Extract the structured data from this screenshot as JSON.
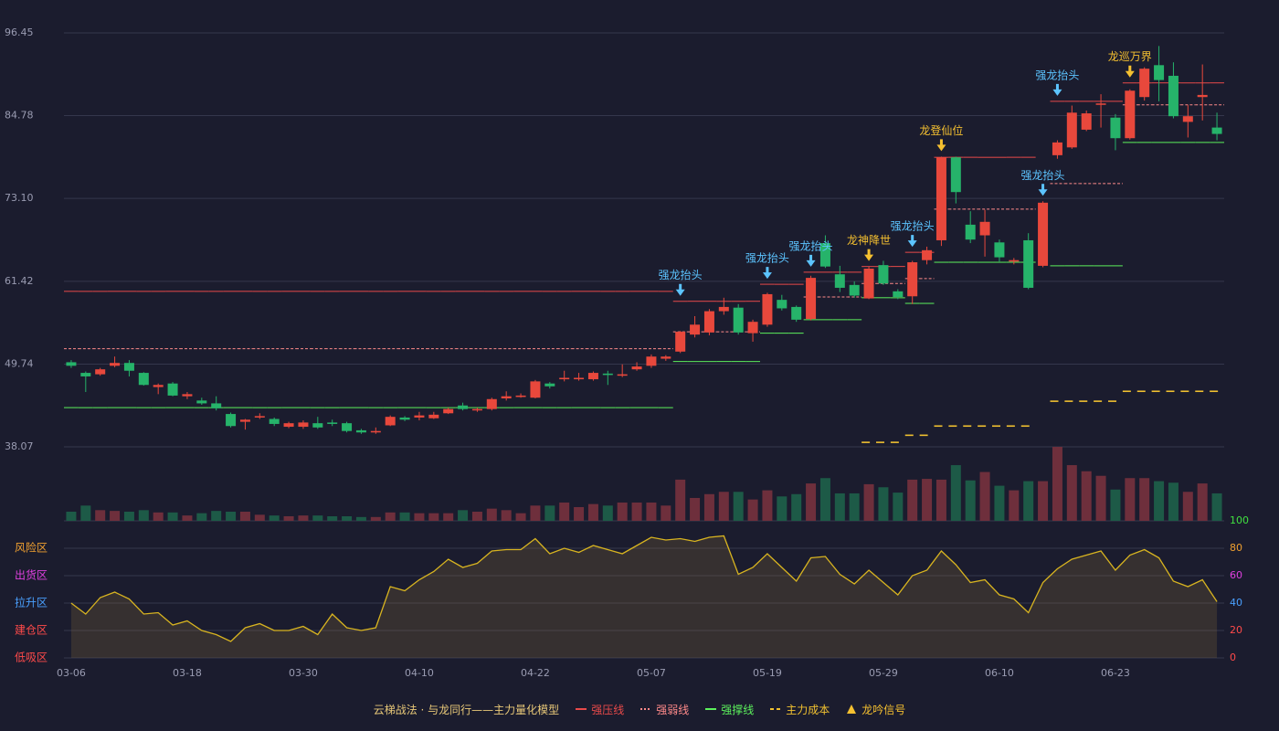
{
  "chart_data": {
    "type": "candlestick",
    "legend_title": "云梯战法 · 与龙同行——主力量化模型",
    "categories": [
      "03-06",
      null,
      null,
      null,
      null,
      null,
      null,
      null,
      "03-18",
      null,
      null,
      null,
      null,
      null,
      null,
      null,
      "03-30",
      null,
      null,
      null,
      null,
      null,
      null,
      null,
      "04-10",
      null,
      null,
      null,
      null,
      null,
      null,
      null,
      "04-22",
      null,
      null,
      null,
      null,
      null,
      null,
      null,
      "05-07",
      null,
      null,
      null,
      null,
      null,
      null,
      null,
      "05-19",
      null,
      null,
      null,
      null,
      null,
      null,
      null,
      "05-29",
      null,
      null,
      null,
      null,
      null,
      null,
      null,
      "06-10",
      null,
      null,
      null,
      null,
      null,
      null,
      null,
      "06-23",
      null,
      null,
      null,
      null,
      null,
      null,
      null
    ],
    "ylim": [
      38.07,
      96.45
    ],
    "yticks": [
      38.07,
      49.74,
      61.42,
      {
        "value": 73.1,
        "label": "73.10"
      },
      84.78,
      96.45
    ],
    "grid": true,
    "candles": {
      "up_color": "#e8483c",
      "down_color": "#26b36a",
      "open": [
        50.0,
        48.5,
        48.3,
        49.5,
        49.9,
        48.5,
        46.5,
        47.0,
        45.2,
        44.6,
        44.2,
        42.7,
        41.6,
        42.2,
        42.0,
        40.9,
        40.9,
        41.4,
        41.5,
        41.4,
        40.4,
        40.1,
        41.1,
        42.2,
        42.2,
        42.1,
        42.8,
        43.9,
        43.2,
        43.4,
        44.9,
        45.1,
        45.0,
        47.0,
        47.6,
        47.6,
        47.6,
        48.4,
        48.1,
        49.0,
        49.5,
        50.5,
        51.5,
        53.9,
        54.2,
        57.2,
        57.7,
        54.1,
        55.3,
        58.8,
        57.8,
        56.1,
        66.8,
        62.4,
        60.9,
        59.0,
        63.7,
        60.0,
        59.3,
        64.4,
        67.2,
        78.9,
        69.4,
        67.9,
        66.9,
        64.2,
        67.2,
        63.6,
        79.2,
        80.3,
        82.8,
        86.3,
        84.5,
        81.6,
        87.4,
        91.9,
        90.4,
        83.9,
        87.4,
        83.1
      ],
      "high": [
        50.3,
        48.7,
        49.2,
        50.8,
        50.3,
        48.6,
        47.0,
        47.2,
        45.8,
        45.0,
        45.2,
        42.9,
        42.0,
        42.8,
        42.2,
        41.6,
        41.8,
        42.3,
        41.9,
        41.6,
        40.6,
        40.8,
        42.5,
        42.4,
        43.0,
        43.0,
        43.6,
        44.3,
        43.6,
        45.0,
        45.9,
        45.6,
        47.5,
        47.2,
        48.8,
        48.5,
        48.7,
        48.8,
        49.7,
        50.0,
        51.1,
        51.0,
        54.4,
        56.5,
        57.5,
        59.1,
        58.2,
        56.0,
        59.8,
        59.5,
        58.0,
        62.2,
        67.9,
        63.6,
        61.4,
        63.5,
        64.3,
        60.3,
        64.3,
        66.3,
        79.0,
        79.0,
        71.3,
        71.5,
        67.3,
        64.7,
        68.2,
        72.7,
        81.3,
        86.2,
        85.5,
        87.8,
        85.0,
        88.5,
        91.6,
        94.6,
        92.3,
        86.3,
        92.0,
        85.2
      ],
      "low": [
        49.2,
        45.8,
        48.1,
        49.3,
        48.0,
        46.7,
        45.5,
        45.2,
        44.8,
        44.0,
        43.2,
        40.8,
        40.5,
        42.0,
        41.0,
        40.7,
        40.6,
        40.6,
        41.0,
        40.1,
        39.9,
        39.9,
        41.0,
        41.7,
        41.8,
        42.0,
        42.7,
        43.2,
        43.0,
        43.2,
        44.6,
        45.0,
        44.9,
        46.3,
        47.3,
        47.4,
        47.4,
        46.8,
        47.9,
        48.8,
        49.2,
        50.2,
        51.3,
        53.5,
        53.8,
        56.7,
        53.9,
        52.9,
        55.0,
        57.3,
        55.7,
        55.9,
        63.3,
        59.9,
        59.1,
        58.9,
        60.9,
        58.9,
        58.2,
        63.8,
        66.4,
        72.4,
        66.8,
        64.9,
        64.2,
        63.8,
        60.3,
        63.4,
        78.7,
        80.1,
        82.6,
        83.1,
        79.9,
        81.4,
        86.9,
        86.8,
        84.4,
        81.7,
        84.1,
        81.3
      ],
      "close": [
        49.5,
        48.0,
        49.0,
        49.9,
        48.8,
        46.8,
        46.8,
        45.3,
        45.5,
        44.2,
        43.5,
        41.0,
        41.9,
        42.4,
        41.3,
        41.4,
        41.5,
        40.8,
        41.3,
        40.3,
        40.1,
        40.3,
        42.3,
        41.9,
        42.5,
        42.6,
        43.4,
        43.4,
        43.4,
        44.8,
        45.2,
        45.3,
        47.3,
        46.6,
        47.8,
        47.8,
        48.5,
        48.2,
        48.3,
        49.4,
        50.8,
        50.8,
        54.3,
        55.3,
        57.2,
        57.8,
        54.2,
        55.7,
        59.6,
        57.6,
        56.0,
        61.9,
        63.5,
        60.5,
        59.4,
        63.2,
        61.1,
        59.2,
        64.1,
        65.8,
        78.9,
        74.0,
        67.3,
        69.8,
        64.8,
        64.4,
        60.5,
        72.5,
        81.0,
        85.2,
        85.1,
        86.5,
        81.6,
        88.3,
        91.4,
        89.8,
        84.7,
        84.7,
        87.7,
        82.2
      ]
    },
    "volume": {
      "up_color": "#6e2f3c",
      "down_color": "#1d5a47",
      "values": [
        12,
        20,
        14,
        13,
        12,
        14,
        11,
        11,
        7,
        10,
        13,
        12,
        12,
        8,
        7,
        6,
        7,
        7,
        6,
        6,
        5,
        5,
        11,
        11,
        10,
        10,
        10,
        14,
        12,
        16,
        14,
        10,
        20,
        20,
        24,
        18,
        22,
        20,
        24,
        24,
        24,
        20,
        54,
        30,
        35,
        38,
        38,
        28,
        40,
        32,
        35,
        49,
        56,
        36,
        36,
        48,
        44,
        37,
        54,
        55,
        54,
        73,
        53,
        64,
        46,
        40,
        52,
        52,
        97,
        73,
        65,
        59,
        41,
        56,
        56,
        52,
        50,
        38,
        49,
        36
      ]
    },
    "lines": [
      {
        "name": "强压线",
        "color": "#e84a4a",
        "style": "solid",
        "values": [
          60.0,
          60.0,
          60.0,
          60.0,
          60.0,
          60.0,
          60.0,
          60.0,
          60.0,
          60.0,
          60.0,
          60.0,
          60.0,
          60.0,
          60.0,
          60.0,
          60.0,
          60.0,
          60.0,
          60.0,
          60.0,
          60.0,
          60.0,
          60.0,
          60.0,
          60.0,
          60.0,
          60.0,
          60.0,
          60.0,
          60.0,
          60.0,
          60.0,
          60.0,
          60.0,
          60.0,
          60.0,
          60.0,
          60.0,
          60.0,
          60.0,
          60.0,
          58.6,
          58.6,
          58.6,
          58.6,
          58.6,
          58.6,
          61.0,
          61.0,
          61.0,
          62.7,
          62.7,
          62.7,
          62.7,
          63.5,
          63.5,
          63.5,
          65.5,
          65.5,
          78.9,
          78.9,
          78.9,
          78.9,
          78.9,
          78.9,
          78.9,
          null,
          86.8,
          86.8,
          86.8,
          86.8,
          86.8,
          89.4,
          89.4,
          89.4,
          89.4,
          89.4,
          89.4,
          89.4
        ]
      },
      {
        "name": "强弱线",
        "color": "#ff8a8a",
        "style": "dotted",
        "values": [
          51.9,
          51.9,
          51.9,
          51.9,
          51.9,
          51.9,
          51.9,
          51.9,
          51.9,
          51.9,
          51.9,
          51.9,
          51.9,
          51.9,
          51.9,
          51.9,
          51.9,
          51.9,
          51.9,
          51.9,
          51.9,
          51.9,
          51.9,
          51.9,
          51.9,
          51.9,
          51.9,
          51.9,
          51.9,
          51.9,
          51.9,
          51.9,
          51.9,
          51.9,
          51.9,
          51.9,
          51.9,
          51.9,
          51.9,
          51.9,
          51.9,
          51.9,
          54.3,
          54.3,
          54.3,
          54.3,
          54.3,
          54.3,
          null,
          null,
          null,
          59.2,
          59.2,
          59.2,
          59.2,
          61.1,
          61.1,
          61.1,
          61.8,
          61.8,
          71.6,
          71.6,
          71.6,
          71.6,
          71.6,
          71.6,
          71.6,
          null,
          75.2,
          75.2,
          75.2,
          75.2,
          75.2,
          86.3,
          86.3,
          86.3,
          86.3,
          86.3,
          86.3,
          86.3
        ]
      },
      {
        "name": "强撑线",
        "color": "#5cf05c",
        "style": "solid",
        "values": [
          43.6,
          43.6,
          43.6,
          43.6,
          43.6,
          43.6,
          43.6,
          43.6,
          43.6,
          43.6,
          43.6,
          43.6,
          43.6,
          43.6,
          43.6,
          43.6,
          43.6,
          43.6,
          43.6,
          43.6,
          43.6,
          43.6,
          43.6,
          43.6,
          43.6,
          43.6,
          43.6,
          43.6,
          43.6,
          43.6,
          43.6,
          43.6,
          43.6,
          43.6,
          43.6,
          43.6,
          43.6,
          43.6,
          43.6,
          43.6,
          43.6,
          43.6,
          50.1,
          50.1,
          50.1,
          50.1,
          50.1,
          50.1,
          54.1,
          54.1,
          54.1,
          56.0,
          56.0,
          56.0,
          56.0,
          59.1,
          59.1,
          59.1,
          58.3,
          58.3,
          64.1,
          64.1,
          64.1,
          64.1,
          64.1,
          64.1,
          64.1,
          null,
          63.6,
          63.6,
          63.6,
          63.6,
          63.6,
          81.0,
          81.0,
          81.0,
          81.0,
          81.0,
          81.0,
          81.0
        ]
      },
      {
        "name": "主力成本",
        "color": "#f0c030",
        "style": "dashed",
        "values": [
          null,
          null,
          null,
          null,
          null,
          null,
          null,
          null,
          null,
          null,
          null,
          null,
          null,
          null,
          null,
          null,
          null,
          null,
          null,
          null,
          null,
          null,
          null,
          null,
          null,
          null,
          null,
          null,
          null,
          null,
          null,
          null,
          null,
          null,
          null,
          null,
          null,
          null,
          null,
          null,
          null,
          null,
          null,
          null,
          null,
          null,
          null,
          null,
          null,
          null,
          null,
          null,
          null,
          null,
          null,
          38.7,
          38.7,
          38.7,
          39.7,
          39.7,
          41.0,
          41.0,
          41.0,
          41.0,
          41.0,
          41.0,
          41.0,
          null,
          44.5,
          44.5,
          44.5,
          44.5,
          44.5,
          45.9,
          45.9,
          45.9,
          45.9,
          45.9,
          45.9,
          45.9
        ]
      }
    ],
    "signal_legend": {
      "name": "龙吟信号",
      "color": "#f5c030"
    },
    "signals": [
      {
        "index": 42,
        "label": "强龙抬头",
        "color": "#5cc4ff"
      },
      {
        "index": 48,
        "label": "强龙抬头",
        "color": "#5cc4ff"
      },
      {
        "index": 51,
        "label": "强龙抬头",
        "color": "#5cc4ff"
      },
      {
        "index": 55,
        "label": "龙神降世",
        "color": "#f5c030"
      },
      {
        "index": 58,
        "label": "强龙抬头",
        "color": "#5cc4ff"
      },
      {
        "index": 60,
        "label": "龙登仙位",
        "color": "#f5c030"
      },
      {
        "index": 67,
        "label": "强龙抬头",
        "color": "#5cc4ff"
      },
      {
        "index": 68,
        "label": "强龙抬头",
        "color": "#5cc4ff"
      },
      {
        "index": 73,
        "label": "龙巡万界",
        "color": "#f5c030"
      }
    ],
    "oscillator": {
      "color": "#d8b420",
      "values": [
        40,
        32,
        44,
        48,
        43,
        32,
        33,
        24,
        27,
        20,
        17,
        12,
        22,
        25,
        20,
        20,
        23,
        17,
        32,
        22,
        20,
        22,
        52,
        49,
        57,
        63,
        72,
        66,
        69,
        78,
        79,
        79,
        87,
        76,
        80,
        77,
        82,
        79,
        76,
        82,
        88,
        86,
        87,
        85,
        88,
        89,
        61,
        66,
        76,
        66,
        56,
        73,
        74,
        61,
        54,
        64,
        55,
        46,
        60,
        64,
        78,
        68,
        55,
        57,
        46,
        43,
        33,
        55,
        65,
        72,
        75,
        78,
        64,
        75,
        79,
        73,
        56,
        52,
        57,
        41
      ],
      "ylim": [
        0,
        100
      ],
      "yticks": [
        0,
        20,
        40,
        60,
        80,
        100
      ],
      "tick_colors": [
        "#ff4a4a",
        "#ff4a4a",
        "#4aa0ff",
        "#e040e0",
        "#f0a030",
        "#40e040"
      ],
      "zones": [
        {
          "value": 80,
          "label": "风险区",
          "color": "#f0a030"
        },
        {
          "value": 60,
          "label": "出货区",
          "color": "#e040e0"
        },
        {
          "value": 40,
          "label": "拉升区",
          "color": "#4aa0ff"
        },
        {
          "value": 20,
          "label": "建仓区",
          "color": "#ff4a4a"
        },
        {
          "value": 0,
          "label": "低吸区",
          "color": "#ff4a4a"
        }
      ]
    }
  }
}
